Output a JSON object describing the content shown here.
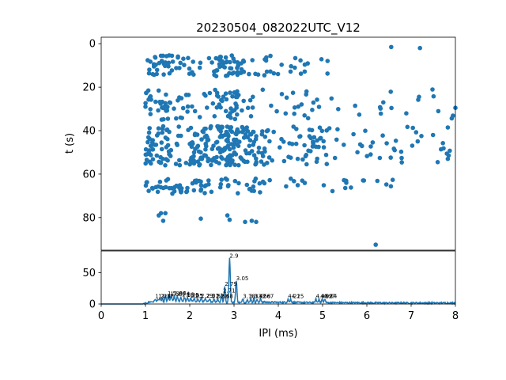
{
  "chart_data": [
    {
      "type": "scatter",
      "title": "20230504_082022UTC_V12",
      "xlabel": "",
      "ylabel": "t (s)",
      "xlim": [
        0,
        8
      ],
      "ylim": [
        95,
        -3
      ],
      "y_inverted": true,
      "yticks": [
        0,
        20,
        40,
        60,
        80
      ],
      "grid": false,
      "marker_color": "#1f77b4",
      "bands": [
        {
          "tmin": 5,
          "tmax": 15,
          "xmin": 1.05,
          "xmax": 5.4,
          "n": 120,
          "xmodes": [
            1.3,
            1.55,
            2.1,
            2.8,
            2.9,
            3.0,
            3.6
          ]
        },
        {
          "tmin": 21,
          "tmax": 35,
          "xmin": 1.0,
          "xmax": 8.0,
          "n": 130,
          "xmodes": [
            1.3,
            1.55,
            2.0,
            2.7,
            2.9,
            3.1,
            4.7
          ]
        },
        {
          "tmin": 38,
          "tmax": 56,
          "xmin": 1.0,
          "xmax": 7.95,
          "n": 330,
          "xmodes": [
            1.3,
            1.55,
            2.2,
            2.6,
            2.85,
            2.95,
            3.05,
            3.5,
            4.8
          ]
        },
        {
          "tmin": 62,
          "tmax": 69,
          "xmin": 1.0,
          "xmax": 7.0,
          "n": 90,
          "xmodes": [
            1.2,
            1.5,
            1.9,
            2.3,
            2.9,
            3.6
          ]
        }
      ],
      "extra_points": [
        {
          "x": 1.35,
          "y": 78
        },
        {
          "x": 1.45,
          "y": 78
        },
        {
          "x": 1.3,
          "y": 79
        },
        {
          "x": 1.4,
          "y": 81.5
        },
        {
          "x": 2.25,
          "y": 80.5
        },
        {
          "x": 2.85,
          "y": 79
        },
        {
          "x": 2.9,
          "y": 81
        },
        {
          "x": 3.25,
          "y": 82
        },
        {
          "x": 3.4,
          "y": 81.5
        },
        {
          "x": 3.5,
          "y": 82
        },
        {
          "x": 6.2,
          "y": 92.5
        },
        {
          "x": 6.55,
          "y": 1.5
        },
        {
          "x": 8.0,
          "y": 29.5
        },
        {
          "x": 7.2,
          "y": 2
        },
        {
          "x": 7.6,
          "y": 54.5
        }
      ]
    },
    {
      "type": "line",
      "xlabel": "IPI (ms)",
      "ylabel": "",
      "xlim": [
        0,
        8
      ],
      "ylim": [
        0,
        85
      ],
      "xticks": [
        0,
        1,
        2,
        3,
        4,
        5,
        6,
        7,
        8
      ],
      "yticks": [
        0,
        50
      ],
      "line_color": "#1f77b4",
      "peaks": [
        {
          "x": 1.22,
          "y": 8
        },
        {
          "x": 1.28,
          "y": 8
        },
        {
          "x": 1.33,
          "y": 9
        },
        {
          "x": 1.38,
          "y": 8
        },
        {
          "x": 1.45,
          "y": 14
        },
        {
          "x": 1.52,
          "y": 13
        },
        {
          "x": 1.58,
          "y": 14
        },
        {
          "x": 1.65,
          "y": 13
        },
        {
          "x": 1.72,
          "y": 12
        },
        {
          "x": 1.8,
          "y": 11
        },
        {
          "x": 1.88,
          "y": 11
        },
        {
          "x": 1.95,
          "y": 10
        },
        {
          "x": 2.02,
          "y": 9
        },
        {
          "x": 2.1,
          "y": 8
        },
        {
          "x": 2.18,
          "y": 8
        },
        {
          "x": 2.26,
          "y": 9
        },
        {
          "x": 2.35,
          "y": 8
        },
        {
          "x": 2.45,
          "y": 9
        },
        {
          "x": 2.55,
          "y": 8
        },
        {
          "x": 2.63,
          "y": 9
        },
        {
          "x": 2.72,
          "y": 17
        },
        {
          "x": 2.79,
          "y": 28
        },
        {
          "x": 2.9,
          "y": 73
        },
        {
          "x": 3.05,
          "y": 37
        },
        {
          "x": 3.2,
          "y": 9
        },
        {
          "x": 3.3,
          "y": 8
        },
        {
          "x": 3.38,
          "y": 9
        },
        {
          "x": 3.45,
          "y": 9
        },
        {
          "x": 3.52,
          "y": 8
        },
        {
          "x": 3.6,
          "y": 9
        },
        {
          "x": 4.22,
          "y": 8
        },
        {
          "x": 4.28,
          "y": 8
        },
        {
          "x": 4.85,
          "y": 8
        },
        {
          "x": 4.92,
          "y": 8
        },
        {
          "x": 4.99,
          "y": 8
        },
        {
          "x": 5.05,
          "y": 8
        }
      ],
      "peak_labels": [
        {
          "x": 1.22,
          "y": 8,
          "text": "1.2"
        },
        {
          "x": 1.29,
          "y": 8,
          "text": "1.28"
        },
        {
          "x": 1.36,
          "y": 8,
          "text": "1.37"
        },
        {
          "x": 1.5,
          "y": 13,
          "text": "1.5"
        },
        {
          "x": 1.56,
          "y": 12,
          "text": "1.53"
        },
        {
          "x": 1.64,
          "y": 13,
          "text": "1.66"
        },
        {
          "x": 1.72,
          "y": 12,
          "text": "1.74"
        },
        {
          "x": 1.82,
          "y": 11,
          "text": "1.86"
        },
        {
          "x": 1.93,
          "y": 10,
          "text": "1.95"
        },
        {
          "x": 2.02,
          "y": 9,
          "text": "2.05"
        },
        {
          "x": 2.12,
          "y": 8,
          "text": "2.1"
        },
        {
          "x": 2.25,
          "y": 9,
          "text": "2.29"
        },
        {
          "x": 2.38,
          "y": 9,
          "text": "2.37"
        },
        {
          "x": 2.5,
          "y": 8,
          "text": "2.5"
        },
        {
          "x": 2.6,
          "y": 8,
          "text": "2.58"
        },
        {
          "x": 2.7,
          "y": 8,
          "text": "2.68"
        },
        {
          "x": 2.75,
          "y": 17,
          "text": "2.71"
        },
        {
          "x": 2.79,
          "y": 28,
          "text": "2.79"
        },
        {
          "x": 2.9,
          "y": 73,
          "text": "2.9"
        },
        {
          "x": 3.05,
          "y": 37,
          "text": "3.05"
        },
        {
          "x": 3.2,
          "y": 8,
          "text": "3.18"
        },
        {
          "x": 3.35,
          "y": 8,
          "text": "3.33"
        },
        {
          "x": 3.45,
          "y": 8,
          "text": "3.42"
        },
        {
          "x": 3.55,
          "y": 8,
          "text": "3.58"
        },
        {
          "x": 3.62,
          "y": 8,
          "text": "3.67"
        },
        {
          "x": 4.22,
          "y": 8,
          "text": "4.21"
        },
        {
          "x": 4.3,
          "y": 8,
          "text": "4.25"
        },
        {
          "x": 4.85,
          "y": 8,
          "text": "4.82"
        },
        {
          "x": 4.95,
          "y": 8,
          "text": "4.92"
        },
        {
          "x": 5.02,
          "y": 8,
          "text": "4.97"
        },
        {
          "x": 5.05,
          "y": 8,
          "text": "5.04"
        }
      ]
    }
  ]
}
